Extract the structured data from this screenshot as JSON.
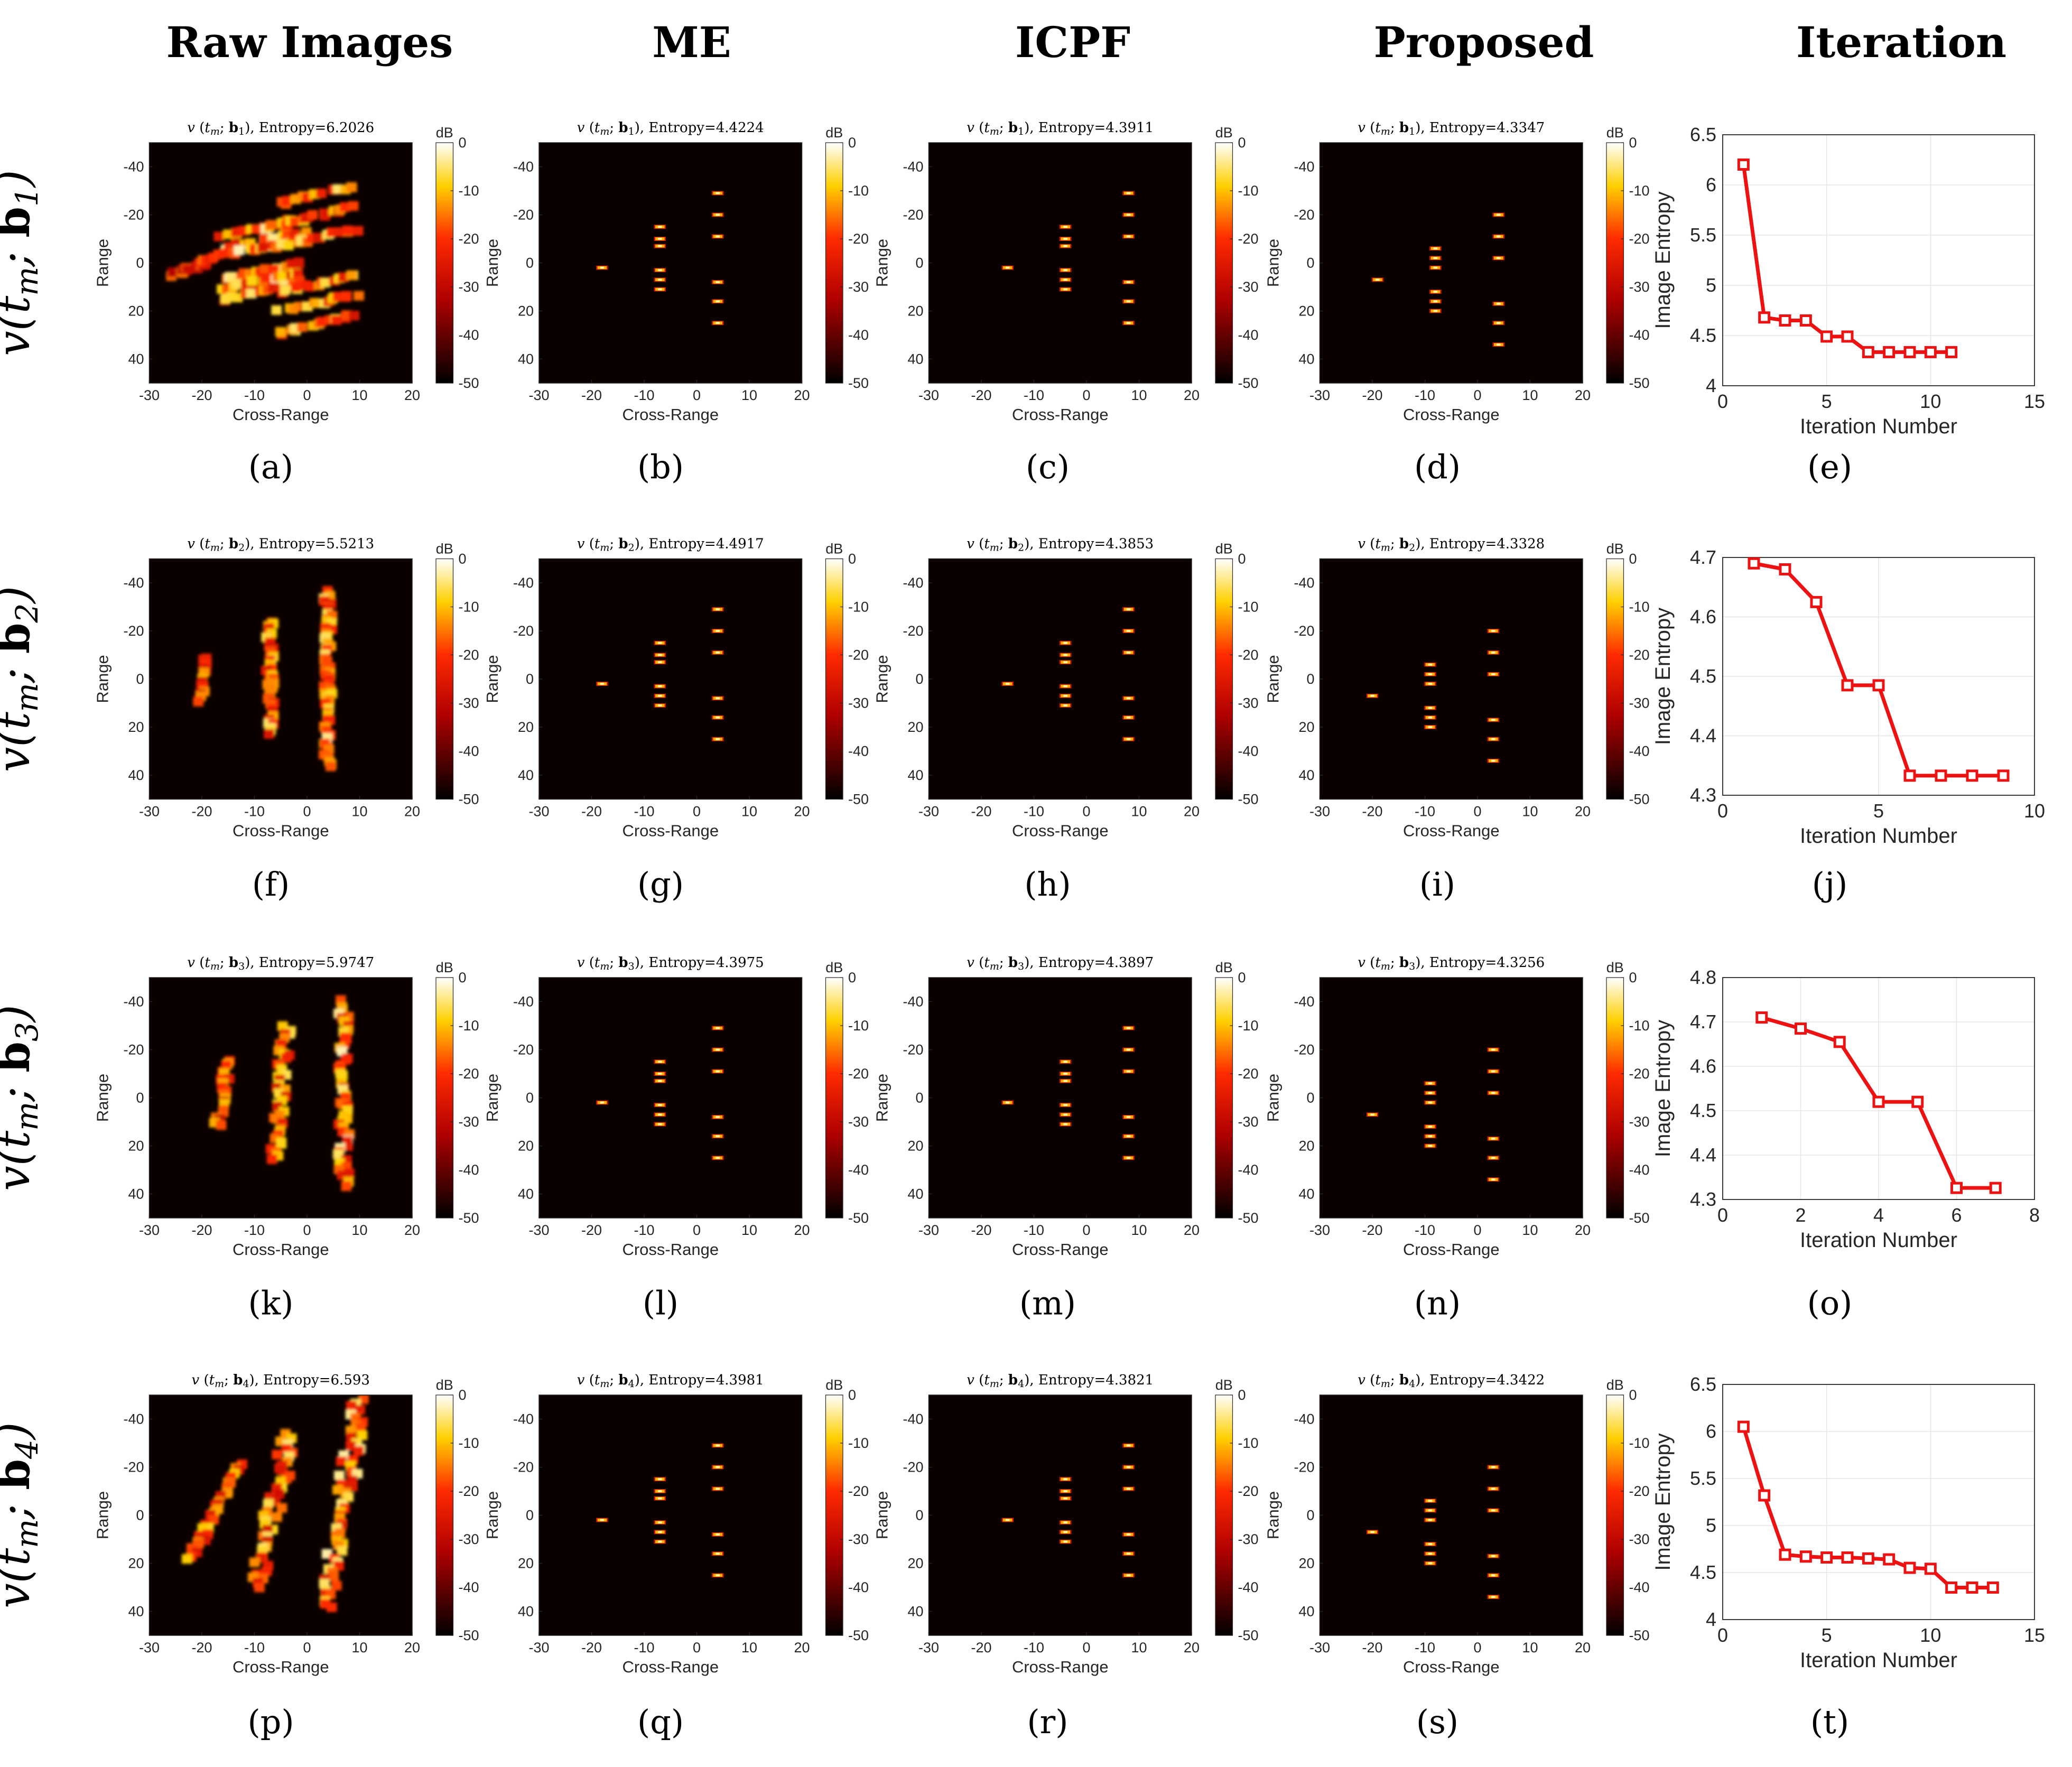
{
  "figure": {
    "column_headers": [
      "Raw Images",
      "ME",
      "ICPF",
      "Proposed",
      "Iteration"
    ],
    "row_labels": [
      {
        "prefix": "v(t",
        "sub": "m",
        "mid": "; b",
        "sub2": "1",
        "suffix": ")"
      },
      {
        "prefix": "v(t",
        "sub": "m",
        "mid": "; b",
        "sub2": "2",
        "suffix": ")"
      },
      {
        "prefix": "v(t",
        "sub": "m",
        "mid": "; b",
        "sub2": "3",
        "suffix": ")"
      },
      {
        "prefix": "v(t",
        "sub": "m",
        "mid": "; b",
        "sub2": "4",
        "suffix": ")"
      }
    ],
    "subfigure_labels": [
      "(a)",
      "(b)",
      "(c)",
      "(d)",
      "(e)",
      "(f)",
      "(g)",
      "(h)",
      "(i)",
      "(j)",
      "(k)",
      "(l)",
      "(m)",
      "(n)",
      "(o)",
      "(p)",
      "(q)",
      "(r)",
      "(s)",
      "(t)"
    ]
  },
  "chart_data": [
    {
      "type": "heatmap",
      "title": "v (t_m; b_1), Entropy=6.2026",
      "b_index": "1",
      "entropy": "6.2026",
      "xlabel": "Cross-Range",
      "ylabel": "Range",
      "xlim": [
        -30,
        20
      ],
      "ylim": [
        -50,
        50
      ],
      "colorbar_label": "dB",
      "clim": [
        -50,
        0
      ],
      "pattern": "raw1"
    },
    {
      "type": "heatmap",
      "title": "v (t_m; b_1), Entropy=4.4224",
      "b_index": "1",
      "entropy": "4.4224",
      "xlabel": "Cross-Range",
      "ylabel": "Range",
      "xlim": [
        -30,
        20
      ],
      "ylim": [
        -50,
        50
      ],
      "colorbar_label": "dB",
      "clim": [
        -50,
        0
      ],
      "pattern": "focused",
      "scatterers": [
        [
          -18,
          2
        ],
        [
          -7,
          -15
        ],
        [
          -7,
          -10
        ],
        [
          -7,
          -7
        ],
        [
          -7,
          3
        ],
        [
          -7,
          7
        ],
        [
          -7,
          11
        ],
        [
          4,
          -29
        ],
        [
          4,
          -20
        ],
        [
          4,
          -11
        ],
        [
          4,
          8
        ],
        [
          4,
          16
        ],
        [
          4,
          25
        ]
      ]
    },
    {
      "type": "heatmap",
      "title": "v (t_m; b_1), Entropy=4.3911",
      "b_index": "1",
      "entropy": "4.3911",
      "xlabel": "Cross-Range",
      "ylabel": "Range",
      "xlim": [
        -30,
        20
      ],
      "ylim": [
        -50,
        50
      ],
      "colorbar_label": "dB",
      "clim": [
        -50,
        0
      ],
      "pattern": "focused",
      "scatterers": [
        [
          -15,
          2
        ],
        [
          -4,
          -15
        ],
        [
          -4,
          -10
        ],
        [
          -4,
          -7
        ],
        [
          -4,
          3
        ],
        [
          -4,
          7
        ],
        [
          -4,
          11
        ],
        [
          8,
          -29
        ],
        [
          8,
          -20
        ],
        [
          8,
          -11
        ],
        [
          8,
          8
        ],
        [
          8,
          16
        ],
        [
          8,
          25
        ]
      ]
    },
    {
      "type": "heatmap",
      "title": "v (t_m; b_1), Entropy=4.3347",
      "b_index": "1",
      "entropy": "4.3347",
      "xlabel": "Cross-Range",
      "ylabel": "Range",
      "xlim": [
        -30,
        20
      ],
      "ylim": [
        -50,
        50
      ],
      "colorbar_label": "dB",
      "clim": [
        -50,
        0
      ],
      "pattern": "focused",
      "scatterers": [
        [
          -19,
          7
        ],
        [
          -8,
          -6
        ],
        [
          -8,
          -2
        ],
        [
          -8,
          2
        ],
        [
          -8,
          12
        ],
        [
          -8,
          16
        ],
        [
          -8,
          20
        ],
        [
          4,
          -20
        ],
        [
          4,
          -11
        ],
        [
          4,
          -2
        ],
        [
          4,
          17
        ],
        [
          4,
          25
        ],
        [
          4,
          34
        ]
      ]
    },
    {
      "type": "line",
      "title": "",
      "xlabel": "Iteration Number",
      "ylabel": "Image Entropy",
      "x": [
        1,
        2,
        3,
        4,
        5,
        6,
        7,
        8,
        9,
        10,
        11
      ],
      "y": [
        6.2026,
        4.68,
        4.65,
        4.65,
        4.49,
        4.49,
        4.3347,
        4.3347,
        4.3347,
        4.3347,
        4.3347
      ],
      "xlim": [
        0,
        15
      ],
      "ylim": [
        4,
        6.5
      ],
      "xticks": [
        0,
        5,
        10,
        15
      ],
      "yticks": [
        4,
        4.5,
        5,
        5.5,
        6,
        6.5
      ],
      "ytick_labels": [
        "4",
        "4.5",
        "5",
        "5.5",
        "6",
        "6.5"
      ],
      "color": "#ee1111",
      "marker": "square"
    },
    {
      "type": "heatmap",
      "title": "v (t_m; b_2), Entropy=5.5213",
      "b_index": "2",
      "entropy": "5.5213",
      "xlabel": "Cross-Range",
      "ylabel": "Range",
      "xlim": [
        -30,
        20
      ],
      "ylim": [
        -50,
        50
      ],
      "colorbar_label": "dB",
      "clim": [
        -50,
        0
      ],
      "pattern": "raw2"
    },
    {
      "type": "heatmap",
      "title": "v (t_m; b_2), Entropy=4.4917",
      "b_index": "2",
      "entropy": "4.4917",
      "xlabel": "Cross-Range",
      "ylabel": "Range",
      "xlim": [
        -30,
        20
      ],
      "ylim": [
        -50,
        50
      ],
      "colorbar_label": "dB",
      "clim": [
        -50,
        0
      ],
      "pattern": "focused",
      "scatterers": [
        [
          -18,
          2
        ],
        [
          -7,
          -15
        ],
        [
          -7,
          -10
        ],
        [
          -7,
          -7
        ],
        [
          -7,
          3
        ],
        [
          -7,
          7
        ],
        [
          -7,
          11
        ],
        [
          4,
          -29
        ],
        [
          4,
          -20
        ],
        [
          4,
          -11
        ],
        [
          4,
          8
        ],
        [
          4,
          16
        ],
        [
          4,
          25
        ]
      ]
    },
    {
      "type": "heatmap",
      "title": "v (t_m; b_2), Entropy=4.3853",
      "b_index": "2",
      "entropy": "4.3853",
      "xlabel": "Cross-Range",
      "ylabel": "Range",
      "xlim": [
        -30,
        20
      ],
      "ylim": [
        -50,
        50
      ],
      "colorbar_label": "dB",
      "clim": [
        -50,
        0
      ],
      "pattern": "focused",
      "scatterers": [
        [
          -15,
          2
        ],
        [
          -4,
          -15
        ],
        [
          -4,
          -10
        ],
        [
          -4,
          -7
        ],
        [
          -4,
          3
        ],
        [
          -4,
          7
        ],
        [
          -4,
          11
        ],
        [
          8,
          -29
        ],
        [
          8,
          -20
        ],
        [
          8,
          -11
        ],
        [
          8,
          8
        ],
        [
          8,
          16
        ],
        [
          8,
          25
        ]
      ]
    },
    {
      "type": "heatmap",
      "title": "v (t_m; b_2), Entropy=4.3328",
      "b_index": "2",
      "entropy": "4.3328",
      "xlabel": "Cross-Range",
      "ylabel": "Range",
      "xlim": [
        -30,
        20
      ],
      "ylim": [
        -50,
        50
      ],
      "colorbar_label": "dB",
      "clim": [
        -50,
        0
      ],
      "pattern": "focused",
      "scatterers": [
        [
          -20,
          7
        ],
        [
          -9,
          -6
        ],
        [
          -9,
          -2
        ],
        [
          -9,
          2
        ],
        [
          -9,
          12
        ],
        [
          -9,
          16
        ],
        [
          -9,
          20
        ],
        [
          3,
          -20
        ],
        [
          3,
          -11
        ],
        [
          3,
          -2
        ],
        [
          3,
          17
        ],
        [
          3,
          25
        ],
        [
          3,
          34
        ]
      ]
    },
    {
      "type": "line",
      "title": "",
      "xlabel": "Iteration Number",
      "ylabel": "Image Entropy",
      "x": [
        1,
        2,
        3,
        4,
        5,
        6,
        7,
        8,
        9
      ],
      "y": [
        4.69,
        4.68,
        4.625,
        4.485,
        4.485,
        4.333,
        4.333,
        4.333,
        4.333
      ],
      "xlim": [
        0,
        10
      ],
      "ylim": [
        4.3,
        4.7
      ],
      "xticks": [
        0,
        5,
        10
      ],
      "yticks": [
        4.3,
        4.4,
        4.5,
        4.6,
        4.7
      ],
      "ytick_labels": [
        "4.3",
        "4.4",
        "4.5",
        "4.6",
        "4.7"
      ],
      "color": "#ee1111",
      "marker": "square"
    },
    {
      "type": "heatmap",
      "title": "v (t_m; b_3), Entropy=5.9747",
      "b_index": "3",
      "entropy": "5.9747",
      "xlabel": "Cross-Range",
      "ylabel": "Range",
      "xlim": [
        -30,
        20
      ],
      "ylim": [
        -50,
        50
      ],
      "colorbar_label": "dB",
      "clim": [
        -50,
        0
      ],
      "pattern": "raw3"
    },
    {
      "type": "heatmap",
      "title": "v (t_m; b_3), Entropy=4.3975",
      "b_index": "3",
      "entropy": "4.3975",
      "xlabel": "Cross-Range",
      "ylabel": "Range",
      "xlim": [
        -30,
        20
      ],
      "ylim": [
        -50,
        50
      ],
      "colorbar_label": "dB",
      "clim": [
        -50,
        0
      ],
      "pattern": "focused",
      "scatterers": [
        [
          -18,
          2
        ],
        [
          -7,
          -15
        ],
        [
          -7,
          -10
        ],
        [
          -7,
          -7
        ],
        [
          -7,
          3
        ],
        [
          -7,
          7
        ],
        [
          -7,
          11
        ],
        [
          4,
          -29
        ],
        [
          4,
          -20
        ],
        [
          4,
          -11
        ],
        [
          4,
          8
        ],
        [
          4,
          16
        ],
        [
          4,
          25
        ]
      ]
    },
    {
      "type": "heatmap",
      "title": "v (t_m; b_3), Entropy=4.3897",
      "b_index": "3",
      "entropy": "4.3897",
      "xlabel": "Cross-Range",
      "ylabel": "Range",
      "xlim": [
        -30,
        20
      ],
      "ylim": [
        -50,
        50
      ],
      "colorbar_label": "dB",
      "clim": [
        -50,
        0
      ],
      "pattern": "focused",
      "scatterers": [
        [
          -15,
          2
        ],
        [
          -4,
          -15
        ],
        [
          -4,
          -10
        ],
        [
          -4,
          -7
        ],
        [
          -4,
          3
        ],
        [
          -4,
          7
        ],
        [
          -4,
          11
        ],
        [
          8,
          -29
        ],
        [
          8,
          -20
        ],
        [
          8,
          -11
        ],
        [
          8,
          8
        ],
        [
          8,
          16
        ],
        [
          8,
          25
        ]
      ]
    },
    {
      "type": "heatmap",
      "title": "v (t_m; b_3), Entropy=4.3256",
      "b_index": "3",
      "entropy": "4.3256",
      "xlabel": "Cross-Range",
      "ylabel": "Range",
      "xlim": [
        -30,
        20
      ],
      "ylim": [
        -50,
        50
      ],
      "colorbar_label": "dB",
      "clim": [
        -50,
        0
      ],
      "pattern": "focused",
      "scatterers": [
        [
          -20,
          7
        ],
        [
          -9,
          -6
        ],
        [
          -9,
          -2
        ],
        [
          -9,
          2
        ],
        [
          -9,
          12
        ],
        [
          -9,
          16
        ],
        [
          -9,
          20
        ],
        [
          3,
          -20
        ],
        [
          3,
          -11
        ],
        [
          3,
          -2
        ],
        [
          3,
          17
        ],
        [
          3,
          25
        ],
        [
          3,
          34
        ]
      ]
    },
    {
      "type": "line",
      "title": "",
      "xlabel": "Iteration Number",
      "ylabel": "Image Entropy",
      "x": [
        1,
        2,
        3,
        4,
        5,
        6,
        7
      ],
      "y": [
        4.71,
        4.685,
        4.655,
        4.52,
        4.52,
        4.326,
        4.326
      ],
      "xlim": [
        0,
        8
      ],
      "ylim": [
        4.3,
        4.8
      ],
      "xticks": [
        0,
        2,
        4,
        6,
        8
      ],
      "yticks": [
        4.3,
        4.4,
        4.5,
        4.6,
        4.7,
        4.8
      ],
      "ytick_labels": [
        "4.3",
        "4.4",
        "4.5",
        "4.6",
        "4.7",
        "4.8"
      ],
      "color": "#ee1111",
      "marker": "square"
    },
    {
      "type": "heatmap",
      "title": "v (t_m; b_4), Entropy=6.593",
      "b_index": "4",
      "entropy": "6.593",
      "xlabel": "Cross-Range",
      "ylabel": "Range",
      "xlim": [
        -30,
        20
      ],
      "ylim": [
        -50,
        50
      ],
      "colorbar_label": "dB",
      "clim": [
        -50,
        0
      ],
      "pattern": "raw4"
    },
    {
      "type": "heatmap",
      "title": "v (t_m; b_4), Entropy=4.3981",
      "b_index": "4",
      "entropy": "4.3981",
      "xlabel": "Cross-Range",
      "ylabel": "Range",
      "xlim": [
        -30,
        20
      ],
      "ylim": [
        -50,
        50
      ],
      "colorbar_label": "dB",
      "clim": [
        -50,
        0
      ],
      "pattern": "focused",
      "scatterers": [
        [
          -18,
          2
        ],
        [
          -7,
          -15
        ],
        [
          -7,
          -10
        ],
        [
          -7,
          -7
        ],
        [
          -7,
          3
        ],
        [
          -7,
          7
        ],
        [
          -7,
          11
        ],
        [
          4,
          -29
        ],
        [
          4,
          -20
        ],
        [
          4,
          -11
        ],
        [
          4,
          8
        ],
        [
          4,
          16
        ],
        [
          4,
          25
        ]
      ]
    },
    {
      "type": "heatmap",
      "title": "v (t_m; b_4), Entropy=4.3821",
      "b_index": "4",
      "entropy": "4.3821",
      "xlabel": "Cross-Range",
      "ylabel": "Range",
      "xlim": [
        -30,
        20
      ],
      "ylim": [
        -50,
        50
      ],
      "colorbar_label": "dB",
      "clim": [
        -50,
        0
      ],
      "pattern": "focused",
      "scatterers": [
        [
          -15,
          2
        ],
        [
          -4,
          -15
        ],
        [
          -4,
          -10
        ],
        [
          -4,
          -7
        ],
        [
          -4,
          3
        ],
        [
          -4,
          7
        ],
        [
          -4,
          11
        ],
        [
          8,
          -29
        ],
        [
          8,
          -20
        ],
        [
          8,
          -11
        ],
        [
          8,
          8
        ],
        [
          8,
          16
        ],
        [
          8,
          25
        ]
      ]
    },
    {
      "type": "heatmap",
      "title": "v (t_m; b_4), Entropy=4.3422",
      "b_index": "4",
      "entropy": "4.3422",
      "xlabel": "Cross-Range",
      "ylabel": "Range",
      "xlim": [
        -30,
        20
      ],
      "ylim": [
        -50,
        50
      ],
      "colorbar_label": "dB",
      "clim": [
        -50,
        0
      ],
      "pattern": "focused",
      "scatterers": [
        [
          -20,
          7
        ],
        [
          -9,
          -6
        ],
        [
          -9,
          -2
        ],
        [
          -9,
          2
        ],
        [
          -9,
          12
        ],
        [
          -9,
          16
        ],
        [
          -9,
          20
        ],
        [
          3,
          -20
        ],
        [
          3,
          -11
        ],
        [
          3,
          -2
        ],
        [
          3,
          17
        ],
        [
          3,
          25
        ],
        [
          3,
          34
        ]
      ]
    },
    {
      "type": "line",
      "title": "",
      "xlabel": "Iteration Number",
      "ylabel": "Image Entropy",
      "x": [
        1,
        2,
        3,
        4,
        5,
        6,
        7,
        8,
        9,
        10,
        11,
        12,
        13
      ],
      "y": [
        6.05,
        5.32,
        4.69,
        4.67,
        4.66,
        4.66,
        4.65,
        4.64,
        4.55,
        4.54,
        4.34,
        4.34,
        4.34
      ],
      "xlim": [
        0,
        15
      ],
      "ylim": [
        4,
        6.5
      ],
      "xticks": [
        0,
        5,
        10,
        15
      ],
      "yticks": [
        4,
        4.5,
        5,
        5.5,
        6,
        6.5
      ],
      "ytick_labels": [
        "4",
        "4.5",
        "5",
        "5.5",
        "6",
        "6.5"
      ],
      "color": "#ee1111",
      "marker": "square"
    }
  ],
  "axis_ticks": {
    "heat_x": [
      "-30",
      "-20",
      "-10",
      "0",
      "10",
      "20"
    ],
    "heat_y": [
      "-40",
      "-20",
      "0",
      "20",
      "40"
    ],
    "colorbar": [
      "0",
      "-10",
      "-20",
      "-30",
      "-40",
      "-50"
    ]
  }
}
